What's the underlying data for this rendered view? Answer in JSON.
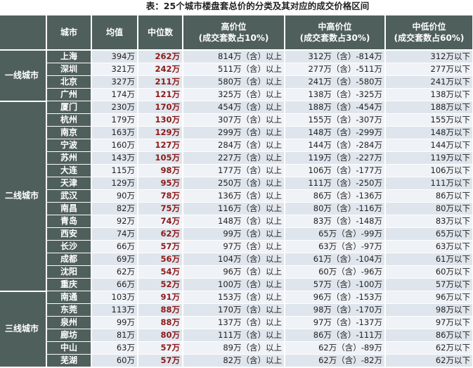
{
  "title": "表：25个城市楼盘套总价的分类及其对应的成交价格区间",
  "headers": {
    "tier": "",
    "city": "城市",
    "mean": "均值",
    "median": "中位数",
    "high": [
      "高价位",
      "(成交套数占10%)"
    ],
    "midhigh": [
      "中高价位",
      "(成交套数占30%)"
    ],
    "midlow": [
      "中低价位",
      "(成交套数占60%)"
    ]
  },
  "colors": {
    "header_bg": "#4f5f5c",
    "median_text": "#8b1a1a",
    "row_a": "#dfe5ec",
    "row_b": "#eff2f6"
  },
  "groups": [
    {
      "tier": "一线城市",
      "rows": [
        [
          "上海",
          "394万",
          "262万",
          "814万（含）以上",
          "312万（含）-814万",
          "312万以下"
        ],
        [
          "深圳",
          "321万",
          "242万",
          "511万（含）以上",
          "277万（含）-511万",
          "277万以下"
        ],
        [
          "北京",
          "327万",
          "211万",
          "580万（含）以上",
          "241万（含）-580万",
          "241万以下"
        ],
        [
          "广州",
          "174万",
          "121万",
          "325万（含）以上",
          "138万（含）-325万",
          "138万以下"
        ]
      ]
    },
    {
      "tier": "二线城市",
      "rows": [
        [
          "厦门",
          "230万",
          "170万",
          "454万（含）以上",
          "188万（含）-454万",
          "188万以下"
        ],
        [
          "杭州",
          "179万",
          "130万",
          "307万（含）以上",
          "155万（含）-307万",
          "155万以下"
        ],
        [
          "南京",
          "163万",
          "129万",
          "299万（含）以上",
          "148万（含）-299万",
          "148万以下"
        ],
        [
          "宁波",
          "160万",
          "127万",
          "284万（含）以上",
          "144万（含）-284万",
          "144万以下"
        ],
        [
          "苏州",
          "143万",
          "105万",
          "227万（含）以上",
          "119万（含）-227万",
          "119万以下"
        ],
        [
          "大连",
          "115万",
          "98万",
          "177万（含）以上",
          "106万（含）-177万",
          "106万以下"
        ],
        [
          "天津",
          "129万",
          "95万",
          "250万（含）以上",
          "111万（含）-250万",
          "111万以下"
        ],
        [
          "武汉",
          "90万",
          "78万",
          "136万（含）以上",
          "86万（含）-136万",
          "86万以下"
        ],
        [
          "南昌",
          "82万",
          "75万",
          "116万（含）以上",
          "80万（含）-116万",
          "80万以下"
        ],
        [
          "青岛",
          "92万",
          "74万",
          "148万（含）以上",
          "83万（含）-148万",
          "83万以下"
        ],
        [
          "西安",
          "74万",
          "62万",
          "99万（含）以上",
          "65万（含）-99万",
          "65万以下"
        ],
        [
          "长沙",
          "66万",
          "57万",
          "97万（含）以上",
          "63万（含）-97万",
          "63万以下"
        ],
        [
          "成都",
          "69万",
          "56万",
          "104万（含）以上",
          "61万（含）-104万",
          "61万以下"
        ],
        [
          "沈阳",
          "62万",
          "54万",
          "96万（含）以上",
          "60万（含）-96万",
          "60万以下"
        ],
        [
          "重庆",
          "66万",
          "52万",
          "100万（含）以上",
          "57万（含）-100万",
          "57万以下"
        ]
      ]
    },
    {
      "tier": "三线城市",
      "rows": [
        [
          "南通",
          "103万",
          "91万",
          "153万（含）以上",
          "96万（含）-153万",
          "96万以下"
        ],
        [
          "东莞",
          "113万",
          "88万",
          "170万（含）以上",
          "98万（含）-170万",
          "98万以下"
        ],
        [
          "泉州",
          "99万",
          "88万",
          "137万（含）以上",
          "97万（含）-137万",
          "97万以下"
        ],
        [
          "廊坊",
          "81万",
          "80万",
          "111万（含）以上",
          "86万（含）-111万",
          "86万以下"
        ],
        [
          "中山",
          "63万",
          "57万",
          "89万（含）以上",
          "62万（含）-89万",
          "62万以下"
        ],
        [
          "芜湖",
          "60万",
          "57万",
          "82万（含）以上",
          "62万（含）-82万",
          "62万以下"
        ]
      ]
    }
  ]
}
